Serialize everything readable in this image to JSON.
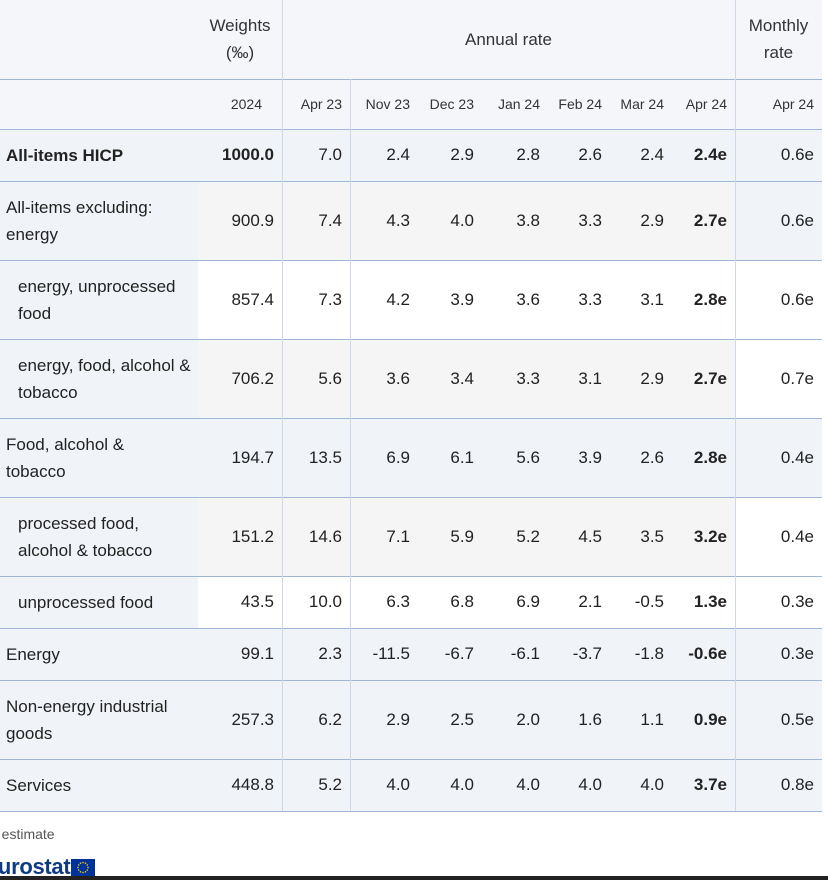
{
  "header": {
    "weights_label": "Weights (‰)",
    "annual_label": "Annual rate",
    "monthly_label": "Monthly rate"
  },
  "subheader": [
    "2024",
    "Apr 23",
    "Nov 23",
    "Dec 23",
    "Jan 24",
    "Feb 24",
    "Mar 24",
    "Apr 24",
    "Apr 24"
  ],
  "rows": [
    {
      "label": "All-items HICP",
      "bold": true,
      "indent": false,
      "values": [
        "1000.0",
        "7.0",
        "2.4",
        "2.9",
        "2.8",
        "2.6",
        "2.4",
        "2.4e",
        "0.6e"
      ]
    },
    {
      "label": "All-items excluding: energy",
      "bold": false,
      "indent": false,
      "values": [
        "900.9",
        "7.4",
        "4.3",
        "4.0",
        "3.8",
        "3.3",
        "2.9",
        "2.7e",
        "0.6e"
      ]
    },
    {
      "label": "energy, unprocessed food",
      "bold": false,
      "indent": true,
      "values": [
        "857.4",
        "7.3",
        "4.2",
        "3.9",
        "3.6",
        "3.3",
        "3.1",
        "2.8e",
        "0.6e"
      ]
    },
    {
      "label": "energy, food, alcohol & tobacco",
      "bold": false,
      "indent": true,
      "values": [
        "706.2",
        "5.6",
        "3.6",
        "3.4",
        "3.3",
        "3.1",
        "2.9",
        "2.7e",
        "0.7e"
      ]
    },
    {
      "label": "Food, alcohol & tobacco",
      "bold": false,
      "indent": false,
      "values": [
        "194.7",
        "13.5",
        "6.9",
        "6.1",
        "5.6",
        "3.9",
        "2.6",
        "2.8e",
        "0.4e"
      ]
    },
    {
      "label": "processed food, alcohol & tobacco",
      "bold": false,
      "indent": true,
      "values": [
        "151.2",
        "14.6",
        "7.1",
        "5.9",
        "5.2",
        "4.5",
        "3.5",
        "3.2e",
        "0.4e"
      ]
    },
    {
      "label": "unprocessed food",
      "bold": false,
      "indent": true,
      "values": [
        "43.5",
        "10.0",
        "6.3",
        "6.8",
        "6.9",
        "2.1",
        "-0.5",
        "1.3e",
        "0.3e"
      ]
    },
    {
      "label": "Energy",
      "bold": false,
      "indent": false,
      "values": [
        "99.1",
        "2.3",
        "-11.5",
        "-6.7",
        "-6.1",
        "-3.7",
        "-1.8",
        "-0.6e",
        "0.3e"
      ]
    },
    {
      "label": "Non-energy industrial goods",
      "bold": false,
      "indent": false,
      "values": [
        "257.3",
        "6.2",
        "2.9",
        "2.5",
        "2.0",
        "1.6",
        "1.1",
        "0.9e",
        "0.5e"
      ]
    },
    {
      "label": "Services",
      "bold": false,
      "indent": false,
      "values": [
        "448.8",
        "5.2",
        "4.0",
        "4.0",
        "4.0",
        "4.0",
        "4.0",
        "3.7e",
        "0.8e"
      ]
    }
  ],
  "footnote": "e estimate",
  "logo_text": "eurostat",
  "colors": {
    "header_bg": "#f4f6fa",
    "row_tint": "#f5f5f5",
    "label_tint": "#f0f3f8",
    "border": "#9fb6d6",
    "logo_blue": "#0e3b83",
    "eu_flag": "#003399",
    "eu_star": "#ffcc00"
  }
}
